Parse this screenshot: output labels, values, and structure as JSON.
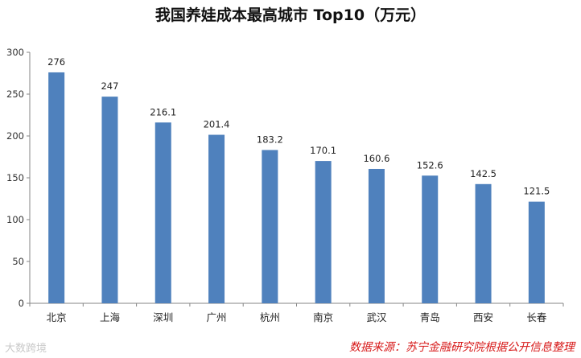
{
  "chart_data": {
    "type": "bar",
    "title": "我国养娃成本最高城市 Top10（万元）",
    "categories": [
      "北京",
      "上海",
      "深圳",
      "广州",
      "杭州",
      "南京",
      "武汉",
      "青岛",
      "西安",
      "长春"
    ],
    "values": [
      276,
      247,
      216.1,
      201.4,
      183.2,
      170.1,
      160.6,
      152.6,
      142.5,
      121.5
    ],
    "data_labels": [
      "276",
      "247",
      "216.1",
      "201.4",
      "183.2",
      "170.1",
      "160.6",
      "152.6",
      "142.5",
      "121.5"
    ],
    "ylim": [
      0,
      300
    ],
    "yticks": [
      0,
      50,
      100,
      150,
      200,
      250,
      300
    ],
    "grid": false,
    "bar_color": "#4f81bd"
  },
  "source_note": "数据来源：苏宁金融研究院根据公开信息整理",
  "watermark": "大数跨境"
}
